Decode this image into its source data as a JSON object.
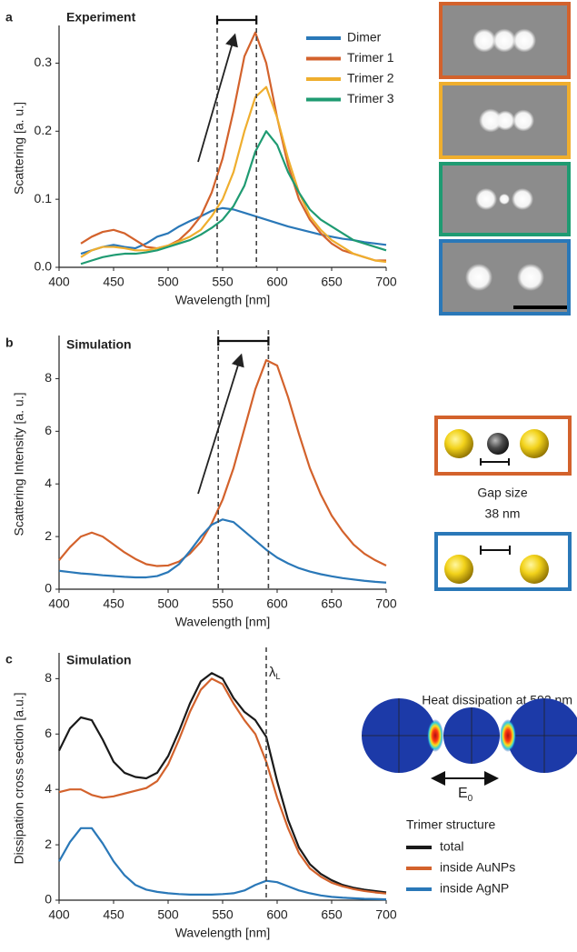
{
  "chart_data": [
    {
      "type": "line",
      "panel_label": "a",
      "title": "Experiment",
      "xlabel": "Wavelength [nm]",
      "ylabel": "Scattering [a. u.]",
      "x": [
        420,
        430,
        440,
        450,
        460,
        470,
        480,
        490,
        500,
        510,
        520,
        530,
        540,
        550,
        560,
        570,
        580,
        590,
        600,
        610,
        620,
        630,
        640,
        650,
        660,
        670,
        680,
        690,
        700
      ],
      "series": [
        {
          "name": "Dimer",
          "color": "#2a78b8",
          "values": [
            0.02,
            0.025,
            0.03,
            0.033,
            0.03,
            0.028,
            0.035,
            0.045,
            0.05,
            0.06,
            0.068,
            0.075,
            0.083,
            0.087,
            0.085,
            0.08,
            0.075,
            0.07,
            0.065,
            0.06,
            0.056,
            0.052,
            0.048,
            0.045,
            0.042,
            0.04,
            0.037,
            0.035,
            0.033
          ]
        },
        {
          "name": "Trimer 1",
          "color": "#d3622c",
          "values": [
            0.035,
            0.045,
            0.052,
            0.055,
            0.05,
            0.04,
            0.03,
            0.028,
            0.032,
            0.04,
            0.055,
            0.075,
            0.11,
            0.16,
            0.23,
            0.31,
            0.345,
            0.3,
            0.22,
            0.15,
            0.1,
            0.07,
            0.05,
            0.035,
            0.025,
            0.02,
            0.015,
            0.01,
            0.01
          ]
        },
        {
          "name": "Trimer 2",
          "color": "#efae2e",
          "values": [
            0.015,
            0.025,
            0.03,
            0.03,
            0.028,
            0.025,
            0.025,
            0.028,
            0.032,
            0.038,
            0.045,
            0.055,
            0.075,
            0.1,
            0.14,
            0.2,
            0.25,
            0.265,
            0.22,
            0.16,
            0.11,
            0.075,
            0.055,
            0.04,
            0.03,
            0.02,
            0.015,
            0.01,
            0.008
          ]
        },
        {
          "name": "Trimer 3",
          "color": "#1f9b72",
          "values": [
            0.005,
            0.01,
            0.015,
            0.018,
            0.02,
            0.02,
            0.022,
            0.025,
            0.03,
            0.035,
            0.04,
            0.048,
            0.058,
            0.07,
            0.09,
            0.12,
            0.17,
            0.2,
            0.18,
            0.14,
            0.11,
            0.085,
            0.07,
            0.06,
            0.05,
            0.04,
            0.035,
            0.03,
            0.025
          ]
        }
      ],
      "xlim": [
        400,
        700
      ],
      "xticks": [
        400,
        450,
        500,
        550,
        600,
        650,
        700
      ],
      "ylim": [
        0,
        0.35
      ],
      "yticks": [
        {
          "value": 0,
          "label": "0.0"
        },
        0.1,
        0.2,
        0.3
      ],
      "vlines": [
        545,
        581
      ],
      "legend": "upper right"
    },
    {
      "type": "line",
      "panel_label": "b",
      "title": "Simulation",
      "xlabel": "Wavelength [nm]",
      "ylabel": "Scattering Intensity [a. u.]",
      "x": [
        400,
        410,
        420,
        430,
        440,
        450,
        460,
        470,
        480,
        490,
        500,
        510,
        520,
        530,
        540,
        550,
        560,
        570,
        580,
        590,
        600,
        610,
        620,
        630,
        640,
        650,
        660,
        670,
        680,
        690,
        700
      ],
      "series": [
        {
          "color": "#d3622c",
          "values": [
            1.1,
            1.6,
            2.0,
            2.15,
            2.0,
            1.7,
            1.4,
            1.15,
            0.95,
            0.88,
            0.9,
            1.05,
            1.35,
            1.8,
            2.5,
            3.4,
            4.6,
            6.1,
            7.6,
            8.7,
            8.5,
            7.3,
            5.9,
            4.6,
            3.6,
            2.8,
            2.2,
            1.7,
            1.35,
            1.1,
            0.9
          ]
        },
        {
          "color": "#2a78b8",
          "values": [
            0.7,
            0.65,
            0.6,
            0.57,
            0.53,
            0.5,
            0.47,
            0.45,
            0.45,
            0.5,
            0.65,
            0.95,
            1.45,
            2.0,
            2.45,
            2.65,
            2.55,
            2.2,
            1.85,
            1.5,
            1.2,
            0.98,
            0.8,
            0.67,
            0.57,
            0.49,
            0.42,
            0.37,
            0.32,
            0.28,
            0.25
          ]
        }
      ],
      "xlim": [
        400,
        700
      ],
      "xticks": [
        400,
        450,
        500,
        550,
        600,
        650,
        700
      ],
      "ylim": [
        0,
        9.5
      ],
      "yticks": [
        0,
        2,
        4,
        6,
        8
      ],
      "vlines": [
        546,
        592
      ]
    },
    {
      "type": "line",
      "panel_label": "c",
      "title": "Simulation",
      "xlabel": "Wavelength [nm]",
      "ylabel": "Dissipation cross section [a.u.]",
      "x": [
        400,
        410,
        420,
        430,
        440,
        450,
        460,
        470,
        480,
        490,
        500,
        510,
        520,
        530,
        540,
        550,
        560,
        570,
        580,
        590,
        600,
        610,
        620,
        630,
        640,
        650,
        660,
        670,
        680,
        690,
        700
      ],
      "series": [
        {
          "name": "total",
          "color": "#1a1a1a",
          "values": [
            5.4,
            6.2,
            6.6,
            6.5,
            5.8,
            5.0,
            4.6,
            4.45,
            4.4,
            4.6,
            5.2,
            6.1,
            7.1,
            7.9,
            8.2,
            8.0,
            7.3,
            6.8,
            6.5,
            5.9,
            4.3,
            2.9,
            1.9,
            1.3,
            0.95,
            0.72,
            0.55,
            0.45,
            0.38,
            0.33,
            0.28
          ]
        },
        {
          "name": "inside AuNPs",
          "color": "#d3622c",
          "values": [
            3.9,
            4.0,
            4.0,
            3.8,
            3.7,
            3.75,
            3.85,
            3.95,
            4.05,
            4.3,
            4.9,
            5.8,
            6.8,
            7.6,
            8.0,
            7.8,
            7.1,
            6.5,
            6.0,
            5.0,
            3.7,
            2.6,
            1.7,
            1.15,
            0.85,
            0.63,
            0.5,
            0.4,
            0.33,
            0.28,
            0.24
          ]
        },
        {
          "name": "inside AgNP",
          "color": "#2a78b8",
          "values": [
            1.4,
            2.1,
            2.6,
            2.6,
            2.05,
            1.4,
            0.9,
            0.55,
            0.38,
            0.3,
            0.25,
            0.22,
            0.2,
            0.2,
            0.2,
            0.22,
            0.25,
            0.35,
            0.55,
            0.7,
            0.65,
            0.5,
            0.35,
            0.25,
            0.17,
            0.12,
            0.09,
            0.07,
            0.05,
            0.04,
            0.03
          ]
        }
      ],
      "xlim": [
        400,
        700
      ],
      "xticks": [
        400,
        450,
        500,
        550,
        600,
        650,
        700
      ],
      "ylim": [
        0,
        8.8
      ],
      "yticks": [
        0,
        2,
        4,
        6,
        8
      ],
      "vlines": [
        590
      ],
      "vline_label": {
        "base": "λ",
        "sub": "L"
      },
      "legend": "outside right",
      "legend_title": "Trimer structure"
    }
  ],
  "figure_text": {
    "gap_label": "Gap size",
    "gap_value": "38 nm",
    "heat_title": "Heat dissipation at 592 nm",
    "field_label": {
      "base": "E",
      "sub": "0"
    }
  }
}
